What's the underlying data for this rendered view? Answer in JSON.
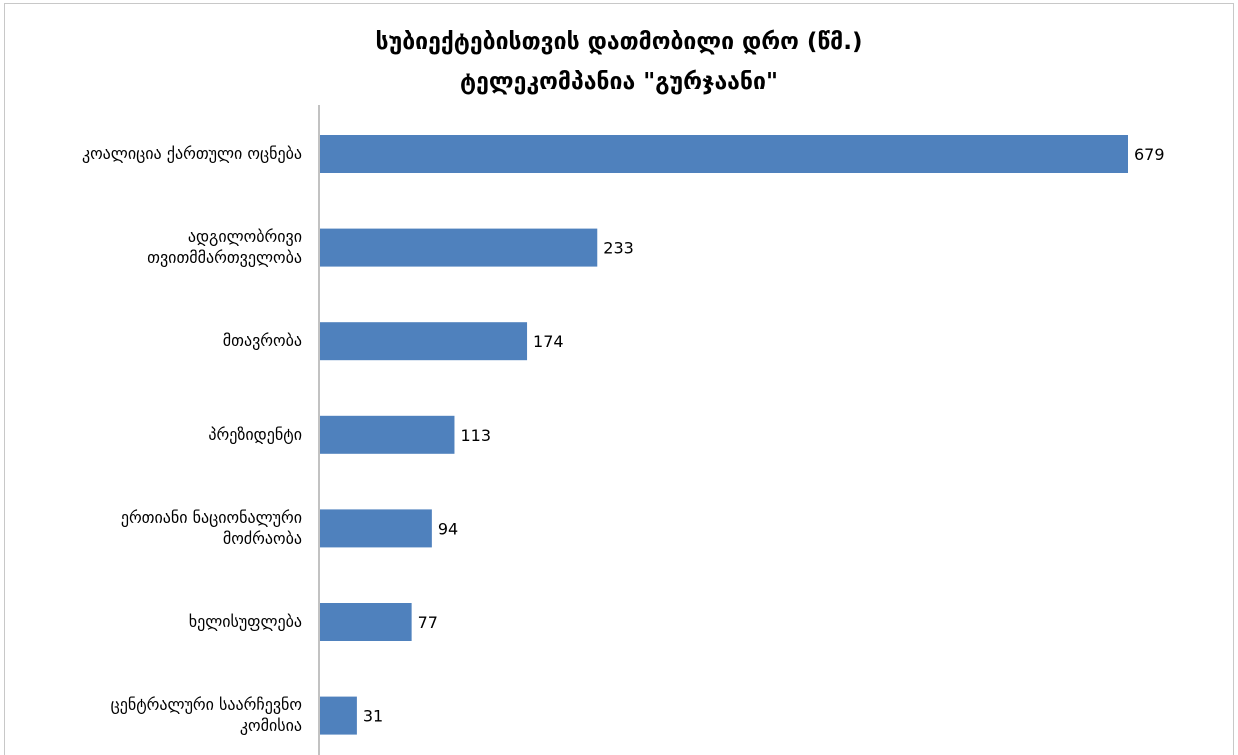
{
  "chart_data": {
    "type": "bar",
    "orientation": "horizontal",
    "title_lines": [
      "სუბიექტებისთვის დათმობილი დრო (წმ.)",
      "ტელეკომპანია \"გურჯაანი\""
    ],
    "categories": [
      [
        "კოალიცია ქართული ოცნება"
      ],
      [
        "ადგილობრივი",
        "თვითმმართველობა"
      ],
      [
        "მთავრობა"
      ],
      [
        "პრეზიდენტი"
      ],
      [
        "ერთიანი ნაციონალური",
        "მოძრაობა"
      ],
      [
        "ხელისუფლება"
      ],
      [
        "ცენტრალური საარჩევნო",
        "კომისია"
      ]
    ],
    "values": [
      679,
      233,
      174,
      113,
      94,
      77,
      31
    ],
    "bar_color": "#4f81bd",
    "xlim": [
      0,
      700
    ],
    "grid": false,
    "legend": "none"
  }
}
